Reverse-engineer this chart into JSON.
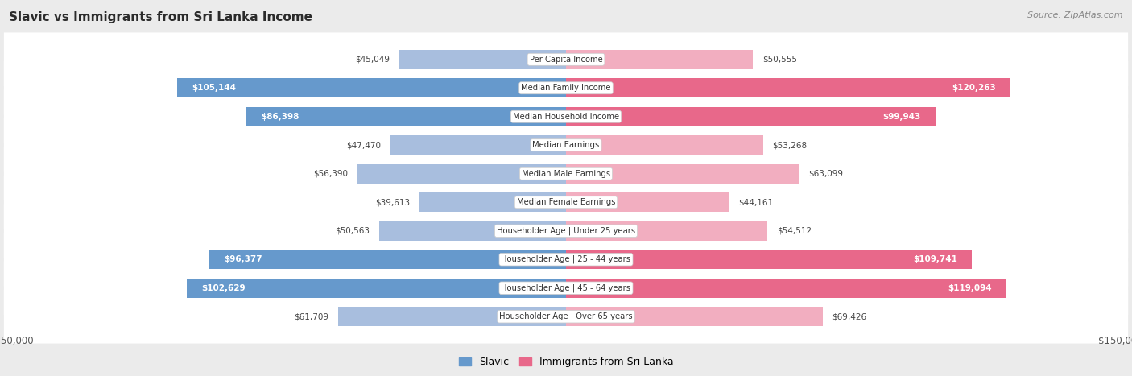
{
  "title": "Slavic vs Immigrants from Sri Lanka Income",
  "source": "Source: ZipAtlas.com",
  "categories": [
    "Per Capita Income",
    "Median Family Income",
    "Median Household Income",
    "Median Earnings",
    "Median Male Earnings",
    "Median Female Earnings",
    "Householder Age | Under 25 years",
    "Householder Age | 25 - 44 years",
    "Householder Age | 45 - 64 years",
    "Householder Age | Over 65 years"
  ],
  "slavic_values": [
    45049,
    105144,
    86398,
    47470,
    56390,
    39613,
    50563,
    96377,
    102629,
    61709
  ],
  "sri_lanka_values": [
    50555,
    120263,
    99943,
    53268,
    63099,
    44161,
    54512,
    109741,
    119094,
    69426
  ],
  "slavic_labels": [
    "$45,049",
    "$105,144",
    "$86,398",
    "$47,470",
    "$56,390",
    "$39,613",
    "$50,563",
    "$96,377",
    "$102,629",
    "$61,709"
  ],
  "sri_lanka_labels": [
    "$50,555",
    "$120,263",
    "$99,943",
    "$53,268",
    "$63,099",
    "$44,161",
    "$54,512",
    "$109,741",
    "$119,094",
    "$69,426"
  ],
  "slavic_color_light": "#a8bede",
  "slavic_color_dark": "#6699cc",
  "sri_lanka_color_light": "#f2aec0",
  "sri_lanka_color_dark": "#e8688a",
  "label_threshold": 80000,
  "max_value": 150000,
  "bg_color": "#ebebeb",
  "row_bg_color": "#ffffff",
  "legend_slavic": "Slavic",
  "legend_sri_lanka": "Immigrants from Sri Lanka"
}
